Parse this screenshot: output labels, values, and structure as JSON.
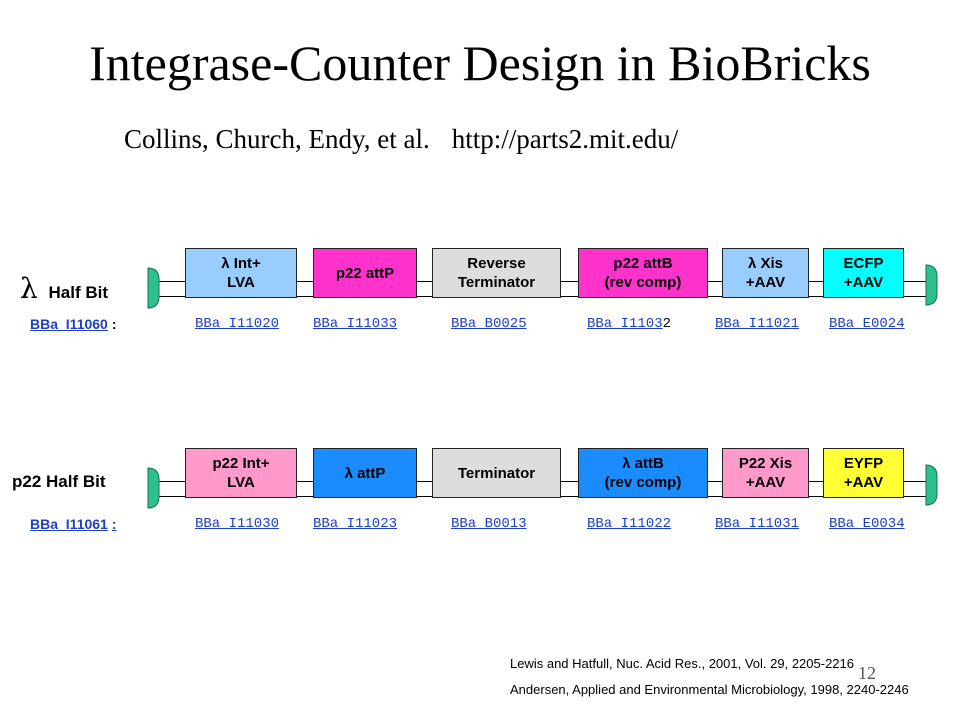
{
  "slide": {
    "title": "Integrase-Counter Design in BioBricks",
    "authors": "Collins, Church, Endy, et al.",
    "url": "http://parts2.mit.edu/",
    "slide_number": "12"
  },
  "constructs": [
    {
      "label_symbol": "λ",
      "label_text": "Half Bit",
      "id_link": "BBa_I11060",
      "id_suffix": ":",
      "parts": [
        {
          "name": "λ Int+\nLVA",
          "color": "#99ccff"
        },
        {
          "name": "p22 attP",
          "color": "#ff33cc"
        },
        {
          "name": "Reverse\nTerminator",
          "color": "#dddddd"
        },
        {
          "name": "p22 attB\n(rev comp)",
          "color": "#ff33cc"
        },
        {
          "name": "λ Xis\n+AAV",
          "color": "#99ccff"
        },
        {
          "name": "ECFP\n+AAV",
          "color": "#00ffff"
        }
      ],
      "part_ids": [
        {
          "link": "BBa_I11020",
          "tail": ""
        },
        {
          "link": "BBa_I11033",
          "tail": ""
        },
        {
          "link": "BBa_B0025",
          "tail": ""
        },
        {
          "link": "BBa_I1103",
          "tail": "2"
        },
        {
          "link": "BBa_I11021",
          "tail": ""
        },
        {
          "link": "BBa_E0024",
          "tail": ""
        }
      ]
    },
    {
      "label_symbol": "",
      "label_text": "p22 Half Bit",
      "id_link": "BBa_I11061",
      "id_suffix": ":",
      "parts": [
        {
          "name": "p22 Int+\nLVA",
          "color": "#ff99cc"
        },
        {
          "name": "λ attP",
          "color": "#1a8cff"
        },
        {
          "name": "Terminator",
          "color": "#dddddd"
        },
        {
          "name": "λ attB\n(rev comp)",
          "color": "#1a8cff"
        },
        {
          "name": "P22 Xis\n+AAV",
          "color": "#ff99cc"
        },
        {
          "name": "EYFP\n+AAV",
          "color": "#ffff33"
        }
      ],
      "part_ids": [
        {
          "link": "BBa_I11030",
          "tail": ""
        },
        {
          "link": "BBa_I11023",
          "tail": ""
        },
        {
          "link": "BBa_B0013",
          "tail": ""
        },
        {
          "link": "BBa_I11022",
          "tail": ""
        },
        {
          "link": "BBa_I11031",
          "tail": ""
        },
        {
          "link": "BBa_E0034",
          "tail": ""
        }
      ]
    }
  ],
  "references": [
    "Lewis and Hatfull, Nuc. Acid Res., 2001, Vol. 29, 2205-2216",
    "Andersen, Applied and Environmental Microbiology, 1998, 2240-2246"
  ],
  "colors": {
    "link": "#1f3fc6",
    "end_cap": "#2ec08c"
  }
}
